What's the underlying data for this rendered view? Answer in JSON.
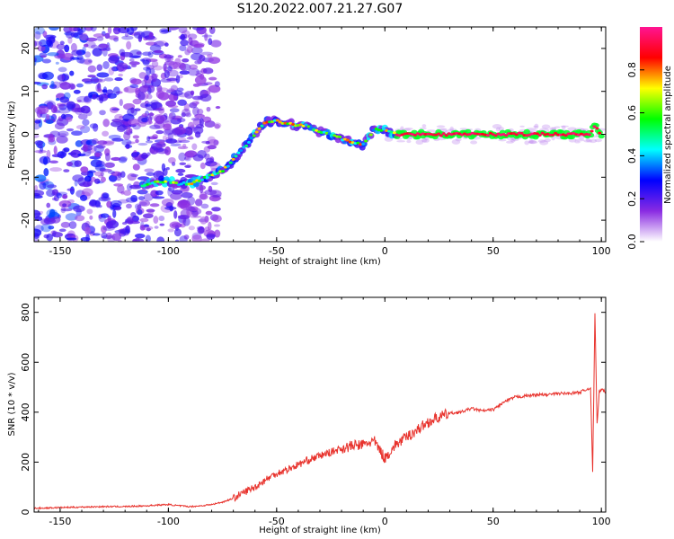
{
  "title": "S120.2022.007.21.27.G07",
  "chart_data": [
    {
      "type": "heatmap",
      "xlabel": "Height of straight line (km)",
      "ylabel": "Frequency (Hz)",
      "xlim": [
        -162,
        102
      ],
      "ylim": [
        -25,
        25
      ],
      "xticks": [
        -150,
        -100,
        -50,
        0,
        50,
        100
      ],
      "yticks": [
        -20,
        -10,
        0,
        10,
        20
      ],
      "colorbar": {
        "label": "Normalized spectral amplitude",
        "range": [
          0,
          1
        ],
        "ticks": [
          "0.0",
          "0.2",
          "0.4",
          "0.6",
          "0.8"
        ],
        "tick_values": [
          0,
          0.2,
          0.4,
          0.6,
          0.8
        ],
        "colormap": [
          "#ffffff",
          "#8a2be2",
          "#0000ff",
          "#00ffff",
          "#00ff00",
          "#ffff00",
          "#ff0000",
          "#ff1493"
        ]
      },
      "ridge": {
        "x": [
          -112,
          -105,
          -100,
          -95,
          -90,
          -85,
          -80,
          -75,
          -70,
          -65,
          -60,
          -55,
          -50,
          -45,
          -40,
          -35,
          -30,
          -25,
          -20,
          -15,
          -10,
          -5,
          0,
          5,
          10,
          20,
          40,
          60,
          80,
          95,
          97,
          100
        ],
        "y": [
          -12,
          -11,
          -11,
          -11.5,
          -11.5,
          -10.5,
          -9.5,
          -8.5,
          -6,
          -3,
          0,
          3,
          3,
          2.5,
          2,
          2,
          0.5,
          0,
          -1,
          -2,
          -2.5,
          1,
          1,
          0,
          0,
          0,
          0,
          0,
          0,
          0,
          2,
          0
        ]
      }
    },
    {
      "type": "line",
      "xlabel": "Height of straight line (km)",
      "ylabel": "SNR (10 * v/v)",
      "xlim": [
        -162,
        102
      ],
      "ylim": [
        0,
        860
      ],
      "xticks": [
        -150,
        -100,
        -50,
        0,
        50,
        100
      ],
      "yticks": [
        0,
        200,
        400,
        600,
        800
      ],
      "color": "#e8332d",
      "series": [
        {
          "x": [
            -162,
            -150,
            -140,
            -130,
            -120,
            -110,
            -105,
            -100,
            -95,
            -90,
            -85,
            -80,
            -75,
            -70,
            -65,
            -60,
            -55,
            -50,
            -45,
            -40,
            -35,
            -30,
            -25,
            -20,
            -15,
            -10,
            -5,
            0,
            5,
            10,
            15,
            20,
            25,
            30,
            35,
            40,
            45,
            50,
            55,
            60,
            65,
            70,
            75,
            80,
            85,
            90,
            93,
            95,
            96,
            97,
            98,
            99,
            100,
            102
          ],
          "y": [
            15,
            18,
            20,
            22,
            22,
            25,
            28,
            30,
            25,
            22,
            25,
            30,
            40,
            55,
            80,
            100,
            130,
            155,
            170,
            190,
            210,
            225,
            240,
            255,
            265,
            270,
            285,
            215,
            270,
            300,
            330,
            360,
            380,
            395,
            400,
            415,
            405,
            410,
            440,
            460,
            465,
            470,
            470,
            475,
            475,
            480,
            490,
            500,
            160,
            800,
            350,
            480,
            490,
            480
          ]
        }
      ]
    }
  ]
}
